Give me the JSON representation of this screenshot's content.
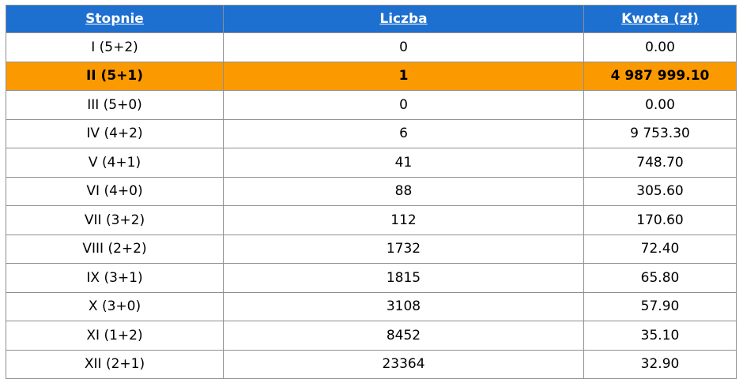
{
  "table": {
    "headers": [
      "Stopnie",
      "Liczba",
      "Kwota (zł)"
    ],
    "rows": [
      {
        "stopien": "I (5+2)",
        "liczba": "0",
        "kwota": "0.00"
      },
      {
        "stopien": "II (5+1)",
        "liczba": "1",
        "kwota": "4 987 999.10",
        "highlighted": true
      },
      {
        "stopien": "III (5+0)",
        "liczba": "0",
        "kwota": "0.00"
      },
      {
        "stopien": "IV (4+2)",
        "liczba": "6",
        "kwota": "9 753.30"
      },
      {
        "stopien": "V (4+1)",
        "liczba": "41",
        "kwota": "748.70"
      },
      {
        "stopien": "VI (4+0)",
        "liczba": "88",
        "kwota": "305.60"
      },
      {
        "stopien": "VII (3+2)",
        "liczba": "112",
        "kwota": "170.60"
      },
      {
        "stopien": "VIII (2+2)",
        "liczba": "1732",
        "kwota": "72.40"
      },
      {
        "stopien": "IX (3+1)",
        "liczba": "1815",
        "kwota": "65.80"
      },
      {
        "stopien": "X (3+0)",
        "liczba": "3108",
        "kwota": "57.90"
      },
      {
        "stopien": "XI (1+2)",
        "liczba": "8452",
        "kwota": "35.10"
      },
      {
        "stopien": "XII (2+1)",
        "liczba": "23364",
        "kwota": "32.90"
      }
    ]
  },
  "colors": {
    "header_bg": "#1d6fd0",
    "highlight_bg": "#fb9a00",
    "border": "#8f8f8f"
  }
}
